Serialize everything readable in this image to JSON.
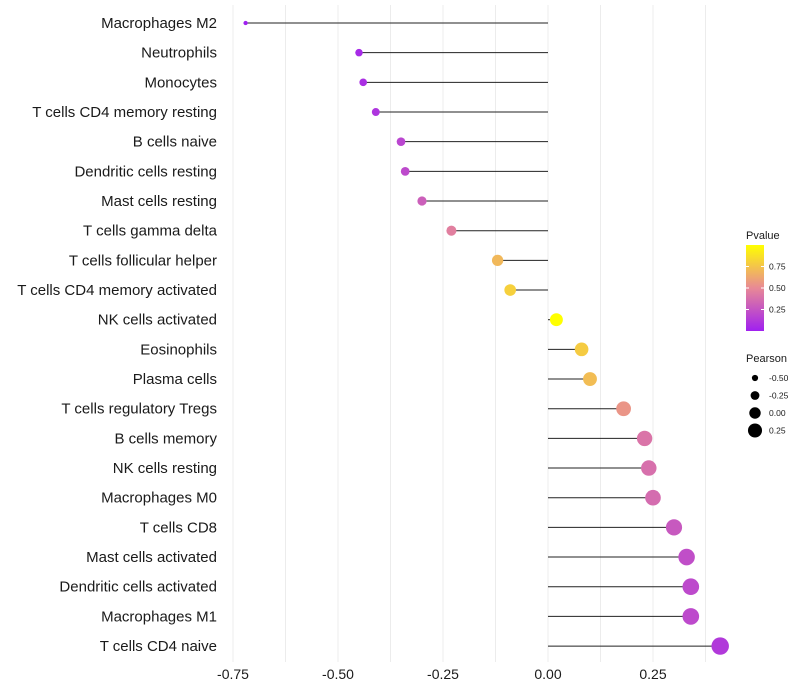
{
  "chart_data": {
    "type": "lollipop",
    "title": "",
    "xlabel": "",
    "ylabel": "",
    "xlim": [
      -0.76,
      0.4
    ],
    "x_ticks": [
      -0.75,
      -0.5,
      -0.25,
      0.0,
      0.25
    ],
    "x_tick_labels": [
      "-0.75",
      "-0.50",
      "-0.25",
      "0.00",
      "0.25"
    ],
    "categories": [
      "Macrophages M2",
      "Neutrophils",
      "Monocytes",
      "T cells CD4 memory resting",
      "B cells naive",
      "Dendritic cells resting",
      "Mast cells resting",
      "T cells gamma delta",
      "T cells follicular helper",
      "T cells CD4 memory activated",
      "NK cells activated",
      "Eosinophils",
      "Plasma cells",
      "T cells regulatory  Tregs ",
      "B cells memory",
      "NK cells resting",
      "Macrophages M0",
      "T cells CD8",
      "Mast cells activated",
      "Dendritic cells activated",
      "Macrophages M1",
      "T cells CD4 naive"
    ],
    "pearson": [
      -0.72,
      -0.45,
      -0.44,
      -0.41,
      -0.35,
      -0.34,
      -0.3,
      -0.23,
      -0.12,
      -0.09,
      0.02,
      0.08,
      0.1,
      0.18,
      0.23,
      0.24,
      0.25,
      0.3,
      0.33,
      0.34,
      0.34,
      0.41
    ],
    "pvalue": [
      0.0,
      0.05,
      0.07,
      0.1,
      0.18,
      0.2,
      0.3,
      0.45,
      0.7,
      0.8,
      1.0,
      0.78,
      0.72,
      0.55,
      0.4,
      0.38,
      0.36,
      0.27,
      0.22,
      0.2,
      0.2,
      0.12
    ],
    "legend": {
      "color_title": "Pvalue",
      "color_breaks": [
        0.25,
        0.5,
        0.75
      ],
      "color_labels": [
        "0.25",
        "0.50",
        "0.75"
      ],
      "color_low": "#a020f0",
      "color_high": "#ffff00",
      "size_title": "Pearson",
      "size_breaks": [
        -0.5,
        -0.25,
        0.0,
        0.25
      ],
      "size_labels": [
        "-0.50",
        "-0.25",
        "0.00",
        "0.25"
      ],
      "placement": "right"
    }
  }
}
